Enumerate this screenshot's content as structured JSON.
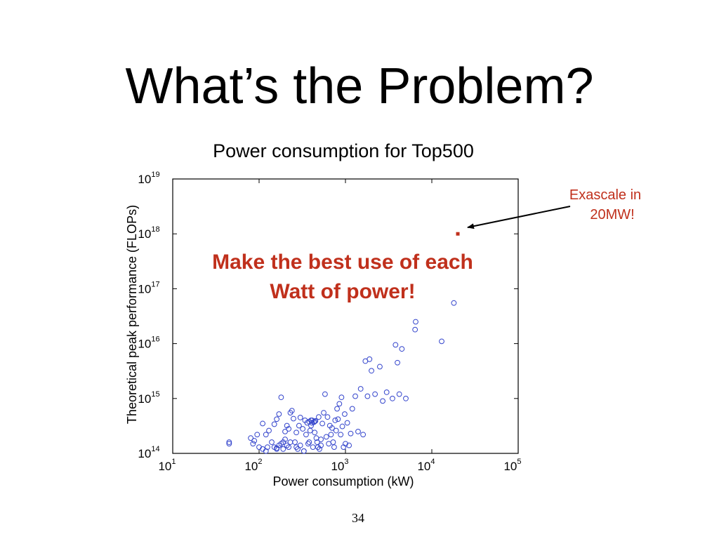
{
  "slide": {
    "title": "What’s the Problem?",
    "page_number": "34"
  },
  "chart_data": {
    "type": "scatter",
    "title": "Power consumption for Top500",
    "xlabel": "Power consumption (kW)",
    "ylabel": "Theoretical peak performance (FLOPs)",
    "x_scale": "log",
    "y_scale": "log",
    "xlim": [
      10,
      100000
    ],
    "ylim": [
      100000000000000,
      10000000000000000000
    ],
    "x_ticks": [
      {
        "base": "10",
        "exp": "1"
      },
      {
        "base": "10",
        "exp": "2"
      },
      {
        "base": "10",
        "exp": "3"
      },
      {
        "base": "10",
        "exp": "4"
      },
      {
        "base": "10",
        "exp": "5"
      }
    ],
    "y_ticks": [
      {
        "base": "10",
        "exp": "14"
      },
      {
        "base": "10",
        "exp": "15"
      },
      {
        "base": "10",
        "exp": "16"
      },
      {
        "base": "10",
        "exp": "17"
      },
      {
        "base": "10",
        "exp": "18"
      },
      {
        "base": "10",
        "exp": "19"
      }
    ],
    "grid": false,
    "series": [
      {
        "color": "#3344cc",
        "marker": "circle-open",
        "points": [
          [
            45,
            160000000000000.0
          ],
          [
            45,
            150000000000000.0
          ],
          [
            80,
            190000000000000.0
          ],
          [
            85,
            150000000000000.0
          ],
          [
            88,
            170000000000000.0
          ],
          [
            95,
            220000000000000.0
          ],
          [
            100,
            130000000000000.0
          ],
          [
            110,
            120000000000000.0
          ],
          [
            120,
            110000000000000.0
          ],
          [
            125,
            130000000000000.0
          ],
          [
            140,
            160000000000000.0
          ],
          [
            150,
            130000000000000.0
          ],
          [
            160,
            120000000000000.0
          ],
          [
            170,
            140000000000000.0
          ],
          [
            180,
            150000000000000.0
          ],
          [
            190,
            120000000000000.0
          ],
          [
            200,
            180000000000000.0
          ],
          [
            210,
            140000000000000.0
          ],
          [
            220,
            130000000000000.0
          ],
          [
            230,
            160000000000000.0
          ],
          [
            110,
            350000000000000.0
          ],
          [
            120,
            220000000000000.0
          ],
          [
            130,
            260000000000000.0
          ],
          [
            150,
            340000000000000.0
          ],
          [
            160,
            420000000000000.0
          ],
          [
            170,
            520000000000000.0
          ],
          [
            180,
            1050000000000000.0
          ],
          [
            200,
            250000000000000.0
          ],
          [
            210,
            320000000000000.0
          ],
          [
            220,
            280000000000000.0
          ],
          [
            230,
            550000000000000.0
          ],
          [
            240,
            600000000000000.0
          ],
          [
            250,
            430000000000000.0
          ],
          [
            260,
            160000000000000.0
          ],
          [
            270,
            240000000000000.0
          ],
          [
            280,
            120000000000000.0
          ],
          [
            290,
            320000000000000.0
          ],
          [
            300,
            450000000000000.0
          ],
          [
            320,
            280000000000000.0
          ],
          [
            330,
            110000000000000.0
          ],
          [
            340,
            400000000000000.0
          ],
          [
            350,
            220000000000000.0
          ],
          [
            360,
            360000000000000.0
          ],
          [
            370,
            150000000000000.0
          ],
          [
            380,
            380000000000000.0
          ],
          [
            390,
            260000000000000.0
          ],
          [
            400,
            320000000000000.0
          ],
          [
            410,
            400000000000000.0
          ],
          [
            420,
            130000000000000.0
          ],
          [
            430,
            370000000000000.0
          ],
          [
            440,
            240000000000000.0
          ],
          [
            450,
            390000000000000.0
          ],
          [
            460,
            190000000000000.0
          ],
          [
            470,
            160000000000000.0
          ],
          [
            480,
            130000000000000.0
          ],
          [
            490,
            460000000000000.0
          ],
          [
            500,
            120000000000000.0
          ],
          [
            520,
            140000000000000.0
          ],
          [
            540,
            350000000000000.0
          ],
          [
            560,
            550000000000000.0
          ],
          [
            580,
            1200000000000000.0
          ],
          [
            600,
            200000000000000.0
          ],
          [
            620,
            460000000000000.0
          ],
          [
            640,
            150000000000000.0
          ],
          [
            660,
            320000000000000.0
          ],
          [
            680,
            220000000000000.0
          ],
          [
            700,
            290000000000000.0
          ],
          [
            720,
            160000000000000.0
          ],
          [
            740,
            130000000000000.0
          ],
          [
            760,
            400000000000000.0
          ],
          [
            780,
            260000000000000.0
          ],
          [
            800,
            650000000000000.0
          ],
          [
            820,
            420000000000000.0
          ],
          [
            850,
            800000000000000.0
          ],
          [
            880,
            220000000000000.0
          ],
          [
            900,
            1050000000000000.0
          ],
          [
            920,
            310000000000000.0
          ],
          [
            950,
            130000000000000.0
          ],
          [
            980,
            520000000000000.0
          ],
          [
            1000,
            150000000000000.0
          ],
          [
            1050,
            360000000000000.0
          ],
          [
            1100,
            140000000000000.0
          ],
          [
            1150,
            230000000000000.0
          ],
          [
            1200,
            650000000000000.0
          ],
          [
            1300,
            1100000000000000.0
          ],
          [
            1400,
            250000000000000.0
          ],
          [
            1500,
            1500000000000000.0
          ],
          [
            1600,
            220000000000000.0
          ],
          [
            1700,
            4800000000000000.0
          ],
          [
            1800,
            1100000000000000.0
          ],
          [
            1900,
            5200000000000000.0
          ],
          [
            2000,
            3200000000000000.0
          ],
          [
            2200,
            1200000000000000.0
          ],
          [
            2500,
            3800000000000000.0
          ],
          [
            2700,
            900000000000000.0
          ],
          [
            3000,
            1300000000000000.0
          ],
          [
            3500,
            1000000000000000.0
          ],
          [
            3800,
            9500000000000000.0
          ],
          [
            4000,
            4500000000000000.0
          ],
          [
            4200,
            1200000000000000.0
          ],
          [
            4500,
            8000000000000000.0
          ],
          [
            5000,
            1000000000000000.0
          ],
          [
            6500,
            2.5e+16
          ],
          [
            6400,
            1.8e+16
          ],
          [
            13000,
            1.1e+16
          ],
          [
            18000,
            5.5e+16
          ],
          [
            380,
            160000000000000.0
          ],
          [
            520,
            180000000000000.0
          ],
          [
            300,
            140000000000000.0
          ],
          [
            330,
            110000000000000.0
          ],
          [
            190,
            160000000000000.0
          ],
          [
            270,
            130000000000000.0
          ],
          [
            160,
            125000000000000.0
          ],
          [
            440,
            380000000000000.0
          ],
          [
            410,
            360000000000000.0
          ],
          [
            400,
            400000000000000.0
          ]
        ]
      },
      {
        "color": "#c0301c",
        "marker": "square-filled",
        "points": [
          [
            20000,
            1000000000000000000
          ]
        ]
      }
    ],
    "overlay_text": [
      "Make the best use of each",
      "Watt of power!"
    ],
    "annotation": {
      "lines": [
        "Exascale in",
        "20MW!"
      ]
    }
  }
}
